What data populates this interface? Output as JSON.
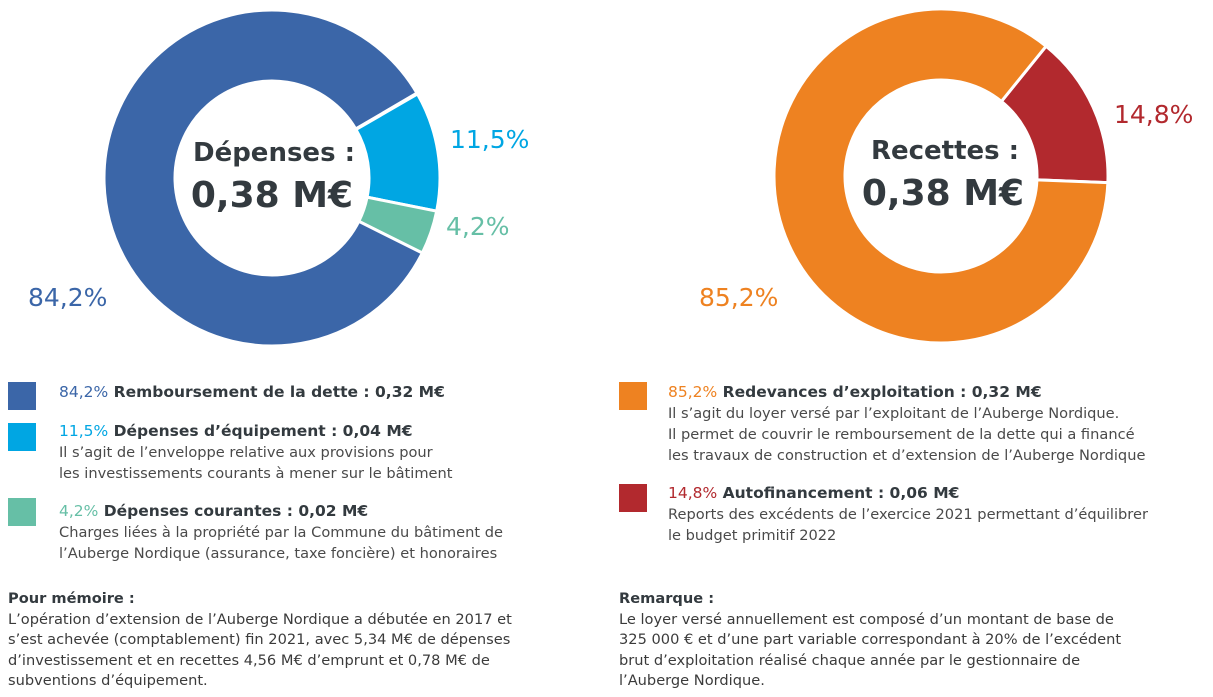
{
  "chart_data": [
    {
      "type": "pie",
      "variant": "donut",
      "title": "Dépenses :",
      "total_label": "0,38 M€",
      "slices": [
        {
          "name": "Remboursement de la dette",
          "percent": 84.2,
          "percent_label": "84,2%",
          "amount_label": "0,32 M€",
          "color": "#3b66a8"
        },
        {
          "name": "Dépenses d’équipement",
          "percent": 11.5,
          "percent_label": "11,5%",
          "amount_label": "0,04 M€",
          "color": "#00a6e3"
        },
        {
          "name": "Dépenses courantes",
          "percent": 4.2,
          "percent_label": "4,2%",
          "amount_label": "0,02 M€",
          "color": "#66bfa6"
        }
      ]
    },
    {
      "type": "pie",
      "variant": "donut",
      "title": "Recettes :",
      "total_label": "0,38 M€",
      "slices": [
        {
          "name": "Redevances d’exploitation",
          "percent": 85.2,
          "percent_label": "85,2%",
          "amount_label": "0,32 M€",
          "color": "#ee8221"
        },
        {
          "name": "Autofinancement",
          "percent": 14.8,
          "percent_label": "14,8%",
          "amount_label": "0,06 M€",
          "color": "#b2292e"
        }
      ]
    }
  ],
  "legend_left": [
    {
      "pct": "84,2%",
      "label": "Remboursement de la dette : 0,32 M€",
      "color": "#3b66a8",
      "desc": []
    },
    {
      "pct": "11,5%",
      "label": "Dépenses d’équipement : 0,04 M€",
      "color": "#00a6e3",
      "desc": [
        "Il s’agit de l’enveloppe relative aux provisions pour",
        "les investissements courants à mener sur le bâtiment"
      ]
    },
    {
      "pct": "4,2%",
      "label": "Dépenses courantes : 0,02 M€",
      "color": "#66bfa6",
      "desc": [
        "Charges liées à la propriété par la Commune du bâtiment de",
        "l’Auberge Nordique (assurance, taxe foncière) et honoraires"
      ]
    }
  ],
  "legend_right": [
    {
      "pct": "85,2%",
      "label": "Redevances d’exploitation : 0,32 M€",
      "color": "#ee8221",
      "desc": [
        "Il s’agit du loyer versé par l’exploitant de l’Auberge Nordique.",
        "Il permet de couvrir le remboursement de la dette qui a financé",
        "les travaux de construction et d’extension de l’Auberge Nordique"
      ]
    },
    {
      "pct": "14,8%",
      "label": "Autofinancement : 0,06 M€",
      "color": "#b2292e",
      "desc": [
        "Reports des excédents de l’exercice 2021 permettant d’équilibrer",
        "le budget primitif 2022"
      ]
    }
  ],
  "notes": {
    "left": {
      "title": "Pour mémoire :",
      "lines": [
        "L’opération d’extension de l’Auberge Nordique a débutée en 2017 et",
        "s’est achevée (comptablement) fin 2021, avec 5,34 M€ de dépenses",
        "d’investissement et en recettes 4,56 M€ d’emprunt et 0,78 M€ de",
        "subventions d’équipement."
      ]
    },
    "right": {
      "title": "Remarque :",
      "lines": [
        "Le loyer versé annuellement est composé d’un montant de base de",
        "325 000 € et d’une part variable correspondant à 20% de l’excédent",
        "brut d’exploitation réalisé chaque année par le gestionnaire de",
        "l’Auberge Nordique."
      ]
    }
  }
}
